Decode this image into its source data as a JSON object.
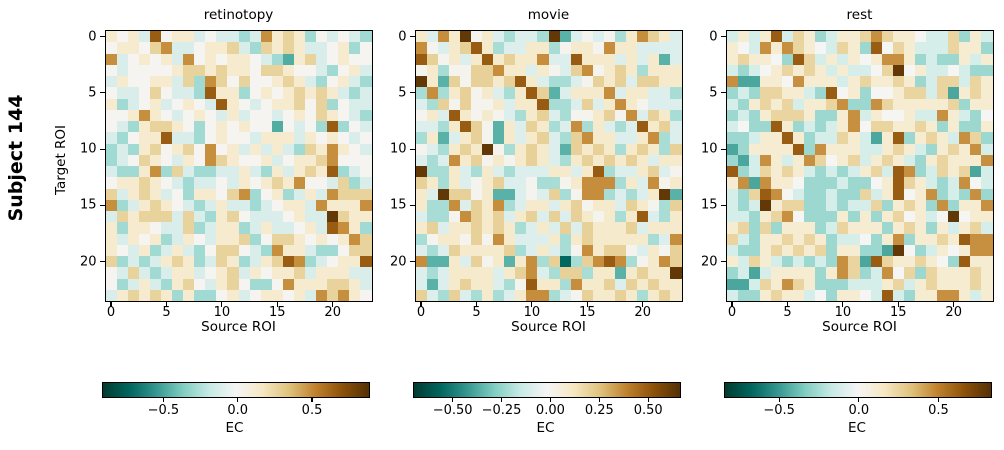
{
  "figure": {
    "row_label": "Subject 144",
    "ylabel": "Target ROI",
    "xlabel": "Source ROI",
    "colorbar_label": "EC"
  },
  "chart_data": {
    "type": "heatmap",
    "n_rois": 24,
    "grid": false,
    "axis_ticks": [
      0,
      5,
      10,
      15,
      20
    ],
    "axis_tick_labels": [
      "0",
      "5",
      "10",
      "15",
      "20"
    ],
    "colormap": "BrBG_r diverging (dark teal = negative, white = zero, dark brown = positive)",
    "colormap_anchors": [
      "#003c30",
      "#01665e",
      "#35978f",
      "#80cdc1",
      "#c7eae5",
      "#f5f5f5",
      "#f6e8c3",
      "#dfc27d",
      "#bf812d",
      "#8c510a",
      "#543005"
    ],
    "value_legend": {
      "D": -0.85,
      "T": -0.55,
      "t": -0.33,
      "u": -0.14,
      ".": 0.0,
      "i": 0.14,
      "o": 0.3,
      "O": 0.55,
      "B": 0.75,
      "K": 0.95
    },
    "value_legend_note": "cell EC value = value_legend[char] * panel vmax; matrix rows are Target ROI 0-23 top to bottom, columns Source ROI 0-23 left to right",
    "panels": [
      {
        "title": "retinotopy",
        "vmin": -0.91,
        "vmax": 0.88,
        "colorbar_ticks": [
          "−0.5",
          "0.0",
          "0.5"
        ],
        "colorbar_tick_values": [
          -0.5,
          0.0,
          0.5
        ],
        "matrix": [
          "i.iuB.iiu.uutuOioit.u.ut",
          ".ii.oOuu.iioutoioiuu.it.",
          "Ou.i.iuO.i.ii.utTiou.i..",
          ".u....iooioii.ooi..ut.iu",
          "ui..iiuotOo.o..ioiut.iut",
          ".uu.o.uutBiit.i.ioioiutu",
          "itu.iu.i.uBi.u.iio.ot.uu",
          "..iOi.u.i.uiu..u.i.oi.ut",
          ".utiooi.t.i.i..T.u.tBt.u",
          "ut.iiBuut.i..uiiiui.i.u.",
          "tutio.io.O.iuiuiutoiOi.u",
          "tu.oi.ui.Ooi..iu.iioO...",
          "uttiOtouttuuiutiuioiBtu.",
          ".iioi.utuu.ui.ioiO..uotu",
          "ouioiu.tii.oOt.ituiuOooo",
          "Otuioi.utuiuutu.iiuOiiiO",
          "uoiooououtio.uuu.iuuKoii",
          "itii.uuotuiituiuu.iuBOit",
          "iui.itui.uiiot.ooi.i.iOo",
          "i.uituiut.oo.utOiiutt.oo",
          "otutuioituoituioBOtu.iiB",
          ".uoutuiiu.ioui.iiouiiiuu",
          ".tuiutio.uio.tt.Oiiiooiu",
          "uioioititt.iu.ii.iuOoOi."
        ]
      },
      {
        "title": "movie",
        "vmin": -0.7,
        "vmax": 0.66,
        "colorbar_ticks": [
          "−0.50",
          "−0.25",
          "0.00",
          "0.25",
          "0.50"
        ],
        "colorbar_tick_values": [
          -0.5,
          -0.25,
          0.0,
          0.25,
          0.5
        ],
        "matrix": [
          "iuOiK.iutuutKTu.u.tiOoiu",
          "O.uioBituuiit.ii.Oiiuuuu",
          "Bo.iuiBioiiOuuBiiiuiuiTu",
          ".it..ooOiiui.uoO.ioitiii",
          "KiTo.ooioBiuttu.oiouooii",
          "tOtio.iutiBoTuiiiOuiiuut",
          "uto.o..iuiiBttuouiOi.uuu",
          ".iuBi.i.utiout..io.Ouoit",
          "uutiBo.TiuoituOtiutuBiou",
          "tiTuio.TiuioutoOiiuuiOtu",
          ".utioiK.tioiuToioitioito",
          "utuOio.i.ioiutioioioiuii",
          "KttiutiutuuuiiuiBtuuiou.",
          "oitiu.iouu.tt.iOOOtiuO.i",
          "iuKoo.iTTu.uot.OOtutuiKT",
          "ittOuoiOtuiiuio.iiuoi.to",
          "utt.Ooiouiououoi.itiButi",
          "iouiioioituiuouoiiiouiii",
          "t.ii.o.OiuuuitioiiiiituO",
          "utuoiiiiotuiut.Oioo.ui.o",
          "OTTiuo.iTiOtoDtoOBOt.iOo",
          "utuiiiiuioOutootiiTioiiK",
          "uTuioiiut.BiitOiiouoioii",
          "outoutituiOOtu.oiioitioi"
        ]
      },
      {
        "title": "rest",
        "vmin": -0.84,
        "vmax": 0.83,
        "colorbar_ticks": [
          "−0.5",
          "0.0",
          "0.5"
        ],
        "colorbar_tick_values": [
          -0.5,
          0.0,
          0.5
        ],
        "matrix": [
          "uiuiBuoituiioOoii.uuotiu",
          "i.uOiOoi.uoitB.oiuuuoiit",
          "ioii.tBouiui.iOOituttiui",
          "utu.ioioiuiuu.oK.iuu.utt",
          "OTTii.Oiiiuioiioituoouoi",
          "tutooiiutB.it..ioouoTioi",
          "utioiouiioOttOoiiiiiotii",
          "tutioooittiOui..iuuOiut.",
          "u.ttBitutuiO.ooiioititti",
          "ttuiiBituuoiuTiBtioiuOot",
          "TtiiiiBtOiiiuuioiutioiOu",
          "tTuOiuiOo.iouioiutioiiiO",
          "BtuoioiututuiouBOtuoioTu",
          "iOTOii.tttutt.iBoiutuO.u",
          "utoBO.uttuttouiB.iOtutOt",
          "utuKioottutuuotioitOtiiO",
          "uutioO.tttititio.iu.K.ii",
          "iototiiituoiiitioitiuiou",
          "outiioioituu.tiOtiioiBOO",
          "uttioioiotiittTK.tui.iOO",
          "iuoiutututOoTBoiioi.tBii",
          "tuTuiiiitiOotuO.otoiiioi",
          "TTuoiOoitttuuuiouioiiioi",
          "uttioiiu.tii.uButiiOOiui"
        ]
      }
    ]
  }
}
